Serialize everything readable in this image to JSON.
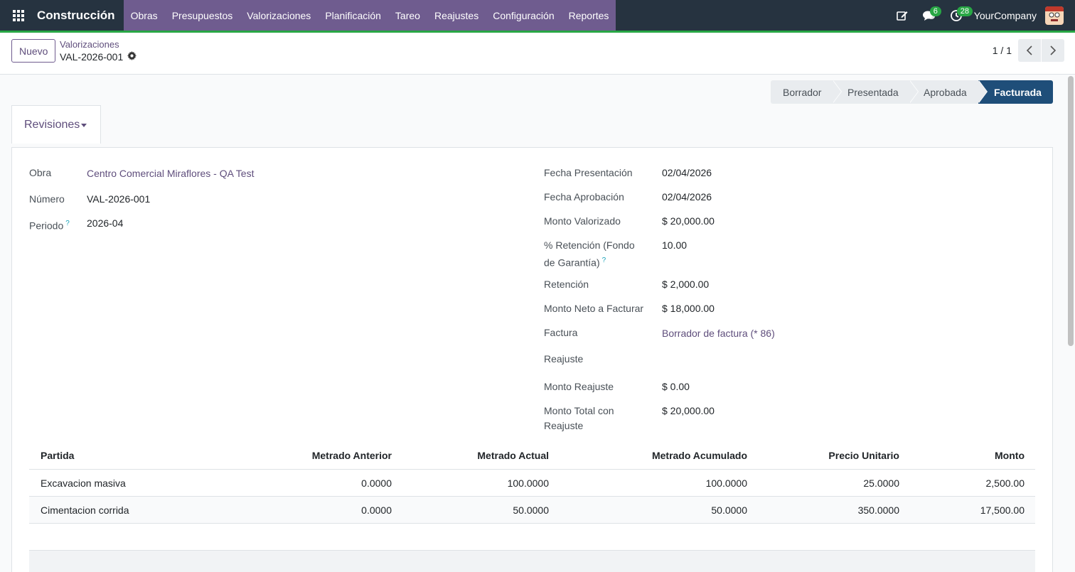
{
  "navbar": {
    "brand": "Construcción",
    "menu": [
      "Obras",
      "Presupuestos",
      "Valorizaciones",
      "Planificación",
      "Tareo",
      "Reajustes",
      "Configuración",
      "Reportes"
    ],
    "messages_count": "6",
    "activities_count": "28",
    "company": "YourCompany"
  },
  "control": {
    "new_label": "Nuevo",
    "breadcrumb_parent": "Valorizaciones",
    "breadcrumb_current": "VAL-2026-001",
    "pager": "1 / 1"
  },
  "statusbar": {
    "stages": [
      "Borrador",
      "Presentada",
      "Aprobada",
      "Facturada"
    ],
    "active": "Facturada"
  },
  "revisiones_label": "Revisiones",
  "form": {
    "left": [
      {
        "label": "Obra",
        "value": "Centro Comercial Miraflores - QA Test",
        "link": true
      },
      {
        "label": "Número",
        "value": "VAL-2026-001"
      },
      {
        "label": "Periodo",
        "value": "2026-04",
        "help": "?"
      }
    ],
    "right": [
      {
        "label": "Fecha Presentación",
        "value": "02/04/2026"
      },
      {
        "label": "Fecha Aprobación",
        "value": "02/04/2026"
      },
      {
        "label": "Monto Valorizado",
        "value": "$ 20,000.00"
      },
      {
        "label": "% Retención (Fondo de Garantía)",
        "label_line1": "% Retención (Fondo",
        "label_line2": "de Garantía)",
        "value": "10.00",
        "help": "?"
      },
      {
        "label": "Retención",
        "value": "$ 2,000.00"
      },
      {
        "label": "Monto Neto a Facturar",
        "value": "$ 18,000.00"
      },
      {
        "label": "Factura",
        "value": "Borrador de factura (* 86)",
        "link": true
      },
      {
        "label": "Reajuste",
        "value": ""
      },
      {
        "label": "Monto Reajuste",
        "value": "$ 0.00"
      },
      {
        "label": "Monto Total con Reajuste",
        "label_line1": "Monto Total con",
        "label_line2": "Reajuste",
        "value": "$ 20,000.00"
      }
    ]
  },
  "table": {
    "columns": [
      "Partida",
      "Metrado Anterior",
      "Metrado Actual",
      "Metrado Acumulado",
      "Precio Unitario",
      "Monto"
    ],
    "rows": [
      [
        "Excavacion masiva",
        "0.0000",
        "100.0000",
        "100.0000",
        "25.0000",
        "2,500.00"
      ],
      [
        "Cimentacion corrida",
        "0.0000",
        "50.0000",
        "50.0000",
        "350.0000",
        "17,500.00"
      ]
    ]
  }
}
